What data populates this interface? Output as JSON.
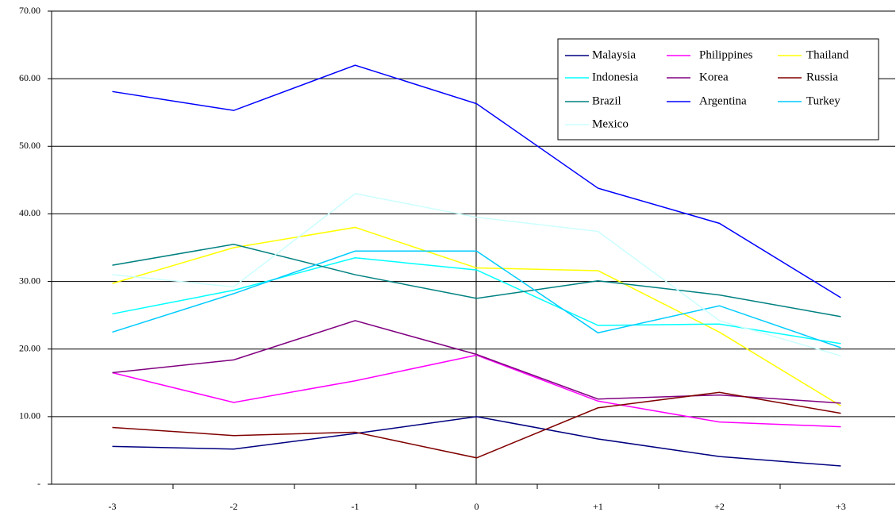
{
  "chart_data": {
    "type": "line",
    "categories": [
      "-3",
      "-2",
      "-1",
      "0",
      "+1",
      "+2",
      "+3"
    ],
    "series": [
      {
        "name": "Malaysia",
        "color": "#000080",
        "values": [
          5.6,
          5.2,
          7.5,
          10.0,
          6.7,
          4.1,
          2.7
        ]
      },
      {
        "name": "Philippines",
        "color": "#ff00ff",
        "values": [
          16.5,
          12.1,
          15.3,
          19.1,
          12.3,
          9.2,
          8.5
        ]
      },
      {
        "name": "Thailand",
        "color": "#ffff00",
        "values": [
          29.7,
          35.0,
          38.0,
          32.0,
          31.6,
          22.5,
          11.6
        ]
      },
      {
        "name": "Indonesia",
        "color": "#00ffff",
        "values": [
          25.2,
          28.7,
          33.5,
          31.7,
          23.5,
          23.7,
          20.8
        ]
      },
      {
        "name": "Korea",
        "color": "#800080",
        "values": [
          16.5,
          18.4,
          24.2,
          19.2,
          12.6,
          13.2,
          12.0
        ]
      },
      {
        "name": "Russia",
        "color": "#800000",
        "values": [
          8.4,
          7.2,
          7.7,
          3.9,
          11.3,
          13.6,
          10.5
        ]
      },
      {
        "name": "Brazil",
        "color": "#008080",
        "values": [
          32.4,
          35.5,
          31.0,
          27.5,
          30.1,
          28.0,
          24.8
        ]
      },
      {
        "name": "Argentina",
        "color": "#0000ff",
        "values": [
          58.1,
          55.3,
          62.0,
          56.3,
          43.8,
          38.6,
          27.6
        ]
      },
      {
        "name": "Turkey",
        "color": "#00ccff",
        "values": [
          22.5,
          28.2,
          34.5,
          34.5,
          22.4,
          26.4,
          20.2
        ]
      },
      {
        "name": "Mexico",
        "color": "#ccffff",
        "values": [
          31.0,
          29.2,
          43.0,
          39.5,
          37.4,
          24.2,
          19.0
        ]
      }
    ],
    "ylim": [
      0,
      70
    ],
    "yticks": [
      {
        "value": 0,
        "label": "-"
      },
      {
        "value": 10,
        "label": "10.00"
      },
      {
        "value": 20,
        "label": "20.00"
      },
      {
        "value": 30,
        "label": "30.00"
      },
      {
        "value": 40,
        "label": "40.00"
      },
      {
        "value": 50,
        "label": "50.00"
      },
      {
        "value": 60,
        "label": "60.00"
      },
      {
        "value": 70,
        "label": "70.00"
      }
    ],
    "grid": true,
    "legend": "upper right"
  }
}
